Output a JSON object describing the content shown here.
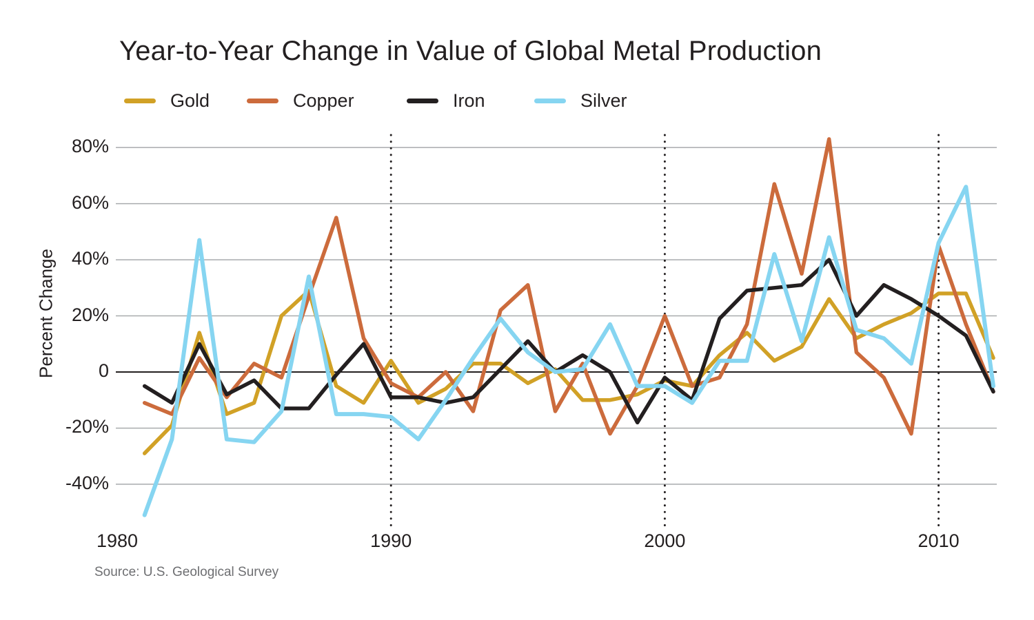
{
  "title": "Year-to-Year Change in Value of Global Metal Production",
  "y_axis_title": "Percent Change",
  "source": "Source: U.S. Geological Survey",
  "colors": {
    "gold": "#d1a126",
    "copper": "#cc6b3c",
    "iron": "#231f20",
    "silver": "#86d5f1",
    "gridline": "#a8aaad",
    "zero_line": "#231f20",
    "dotted_line": "#231f20",
    "text": "#231f20",
    "source_text": "#6d6e71"
  },
  "legend": {
    "items": [
      {
        "label": "Gold",
        "color": "#d1a126"
      },
      {
        "label": "Copper",
        "color": "#cc6b3c"
      },
      {
        "label": "Iron",
        "color": "#231f20"
      },
      {
        "label": "Silver",
        "color": "#86d5f1"
      }
    ]
  },
  "chart_data": {
    "type": "line",
    "title": "Year-to-Year Change in Value of Global Metal Production",
    "xlabel": "",
    "ylabel": "Percent Change",
    "grid": "horizontal",
    "legend_position": "top-left",
    "ylim": [
      -55,
      88
    ],
    "xlim": [
      1980,
      2012.3
    ],
    "x": [
      1981,
      1982,
      1983,
      1984,
      1985,
      1986,
      1987,
      1988,
      1989,
      1990,
      1991,
      1992,
      1993,
      1994,
      1995,
      1996,
      1997,
      1998,
      1999,
      2000,
      2001,
      2002,
      2003,
      2004,
      2005,
      2006,
      2007,
      2008,
      2009,
      2010,
      2011,
      2012
    ],
    "series": [
      {
        "name": "Gold",
        "color": "#d1a126",
        "values": [
          -29,
          -19,
          14,
          -15,
          -11,
          20,
          29,
          -5,
          -11,
          4,
          -11,
          -6,
          3,
          3,
          -4,
          1,
          -10,
          -10,
          -8,
          -3,
          -5,
          6,
          14,
          4,
          9,
          26,
          12,
          17,
          21,
          28,
          28,
          5
        ]
      },
      {
        "name": "Copper",
        "color": "#cc6b3c",
        "values": [
          -11,
          -15,
          5,
          -9,
          3,
          -2,
          27,
          55,
          12,
          -4,
          -9,
          0,
          -14,
          22,
          31,
          -14,
          3,
          -22,
          -5,
          20,
          -5,
          -2,
          17,
          67,
          35,
          83,
          7,
          -2,
          -22,
          45,
          17,
          -7
        ]
      },
      {
        "name": "Iron",
        "color": "#231f20",
        "values": [
          -5,
          -11,
          10,
          -8,
          -3,
          -13,
          -13,
          -1,
          10,
          -9,
          -9,
          -11,
          -9,
          1,
          11,
          0,
          6,
          0,
          -18,
          -2,
          -10,
          19,
          29,
          30,
          31,
          40,
          20,
          31,
          26,
          20,
          13,
          -7
        ]
      },
      {
        "name": "Silver",
        "color": "#86d5f1",
        "values": [
          -51,
          -24,
          47,
          -24,
          -25,
          -14,
          34,
          -15,
          -15,
          -16,
          -24,
          -10,
          5,
          19,
          7,
          0,
          1,
          17,
          -5,
          -5,
          -11,
          4,
          4,
          42,
          11,
          48,
          15,
          12,
          3,
          46,
          66,
          -5
        ]
      }
    ],
    "y_ticks": [
      {
        "value": 80,
        "label": "80%"
      },
      {
        "value": 60,
        "label": "60%"
      },
      {
        "value": 40,
        "label": "40%"
      },
      {
        "value": 20,
        "label": "20%"
      },
      {
        "value": 0,
        "label": "0"
      },
      {
        "value": -20,
        "label": "-20%"
      },
      {
        "value": -40,
        "label": "-40%"
      }
    ],
    "x_ticks": [
      {
        "value": 1980,
        "label": "1980"
      },
      {
        "value": 1990,
        "label": "1990"
      },
      {
        "value": 2000,
        "label": "2000"
      },
      {
        "value": 2010,
        "label": "2010"
      }
    ],
    "dotted_year_lines": [
      1990,
      2000,
      2010
    ]
  }
}
